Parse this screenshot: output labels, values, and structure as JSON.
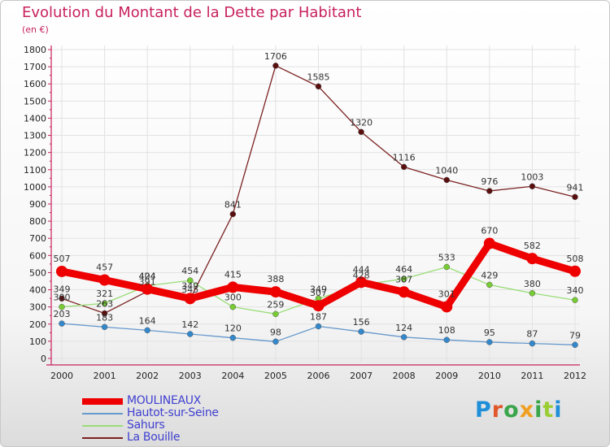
{
  "title": "Evolution du Montant de la Dette par Habitant",
  "unit_label": "(en €)",
  "logo_text": "Proxiti",
  "chart_data": {
    "type": "line",
    "title": "Evolution du Montant de la Dette par Habitant",
    "ylabel": "(en €)",
    "xlabel": "",
    "ylim": [
      0,
      1800
    ],
    "yticks": [
      0,
      100,
      200,
      300,
      400,
      500,
      600,
      700,
      800,
      900,
      1000,
      1100,
      1200,
      1300,
      1400,
      1500,
      1600,
      1700,
      1800
    ],
    "categories": [
      "2000",
      "2001",
      "2002",
      "2003",
      "2004",
      "2005",
      "2006",
      "2007",
      "2008",
      "2009",
      "2010",
      "2011",
      "2012"
    ],
    "legend_position": "bottom-left",
    "series": [
      {
        "name": "MOULINEAUX",
        "color": "#ee0000",
        "marker": "#ee0000",
        "values": [
          507,
          457,
          404,
          349,
          415,
          388,
          307,
          444,
          387,
          301,
          670,
          582,
          508
        ],
        "labels": [
          "507",
          "457",
          "404",
          "349",
          "415",
          "388",
          "307",
          "444",
          "387",
          "301",
          "670",
          "582",
          "508"
        ]
      },
      {
        "name": "Hautot-sur-Seine",
        "color": "#6699cc",
        "marker": "#3388cc",
        "values": [
          203,
          183,
          164,
          142,
          120,
          98,
          187,
          156,
          124,
          108,
          95,
          87,
          79
        ],
        "labels": [
          "203",
          "183",
          "164",
          "142",
          "120",
          "98",
          "187",
          "156",
          "124",
          "108",
          "95",
          "87",
          "79"
        ]
      },
      {
        "name": "Sahurs",
        "color": "#99dd77",
        "marker": "#77cc33",
        "values": [
          300,
          321,
          424,
          454,
          300,
          259,
          349,
          428,
          464,
          533,
          429,
          380,
          340
        ],
        "labels": [
          "300",
          "321",
          "424",
          "454",
          "300",
          "259",
          "349",
          "428",
          "464",
          "533",
          "429",
          "380",
          "340"
        ]
      },
      {
        "name": "La Bouille",
        "color": "#7b2222",
        "marker": "#5a0f0f",
        "values": [
          349,
          263,
          391,
          345,
          841,
          1706,
          1585,
          1320,
          1116,
          1040,
          976,
          1003,
          941
        ],
        "labels": [
          "349",
          "263",
          "391",
          "345",
          "841",
          "1706",
          "1585",
          "1320",
          "1116",
          "1040",
          "976",
          "1003",
          "941"
        ]
      }
    ]
  }
}
